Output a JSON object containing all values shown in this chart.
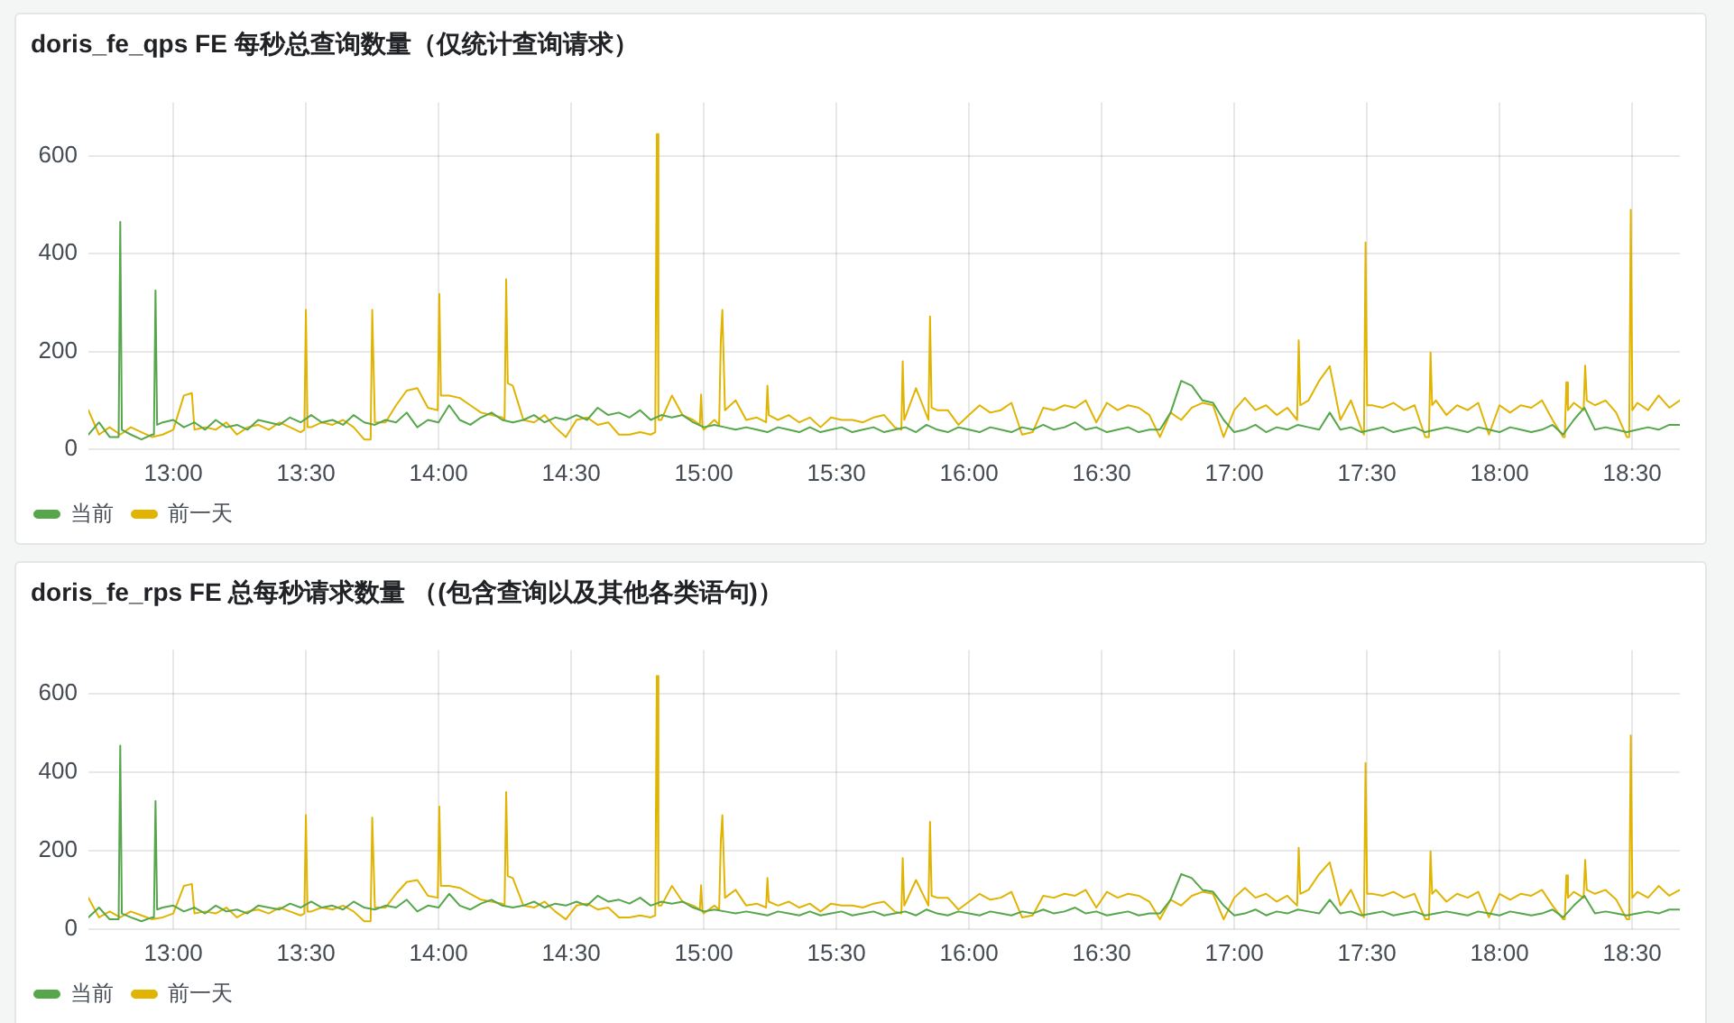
{
  "chart_data": [
    {
      "type": "line",
      "title": "doris_fe_qps FE 每秒总查询数量（仅统计查询请求）",
      "xlim": [
        12.68,
        18.68
      ],
      "xticks": [
        {
          "value": 13,
          "label": "13:00"
        },
        {
          "value": 13.5,
          "label": "13:30"
        },
        {
          "value": 14,
          "label": "14:00"
        },
        {
          "value": 14.5,
          "label": "14:30"
        },
        {
          "value": 15,
          "label": "15:00"
        },
        {
          "value": 15.5,
          "label": "15:30"
        },
        {
          "value": 16,
          "label": "16:00"
        },
        {
          "value": 16.5,
          "label": "16:30"
        },
        {
          "value": 17,
          "label": "17:00"
        },
        {
          "value": 17.5,
          "label": "17:30"
        },
        {
          "value": 18,
          "label": "18:00"
        },
        {
          "value": 18.5,
          "label": "18:30"
        }
      ],
      "ylim": [
        0,
        710
      ],
      "yticks": [
        0,
        200,
        400,
        600
      ],
      "grid": true,
      "legend": "bottom",
      "marker": "none",
      "series": [
        {
          "name": "当前",
          "color": "#56a64b",
          "x": [
            12.68,
            12.72,
            12.76,
            12.794,
            12.8,
            12.806,
            12.84,
            12.88,
            12.92,
            12.927,
            12.933,
            12.939,
            12.96,
            13,
            13.04,
            13.08,
            13.12,
            13.16,
            13.2,
            13.24,
            13.28,
            13.32,
            13.36,
            13.4,
            13.44,
            13.48,
            13.52,
            13.56,
            13.6,
            13.64,
            13.68,
            13.72,
            13.76,
            13.8,
            13.84,
            13.88,
            13.92,
            13.96,
            14,
            14.04,
            14.08,
            14.12,
            14.16,
            14.2,
            14.24,
            14.28,
            14.32,
            14.36,
            14.4,
            14.44,
            14.48,
            14.52,
            14.56,
            14.6,
            14.64,
            14.68,
            14.72,
            14.76,
            14.8,
            14.84,
            14.88,
            14.92,
            14.96,
            15,
            15.04,
            15.08,
            15.12,
            15.16,
            15.2,
            15.24,
            15.28,
            15.32,
            15.36,
            15.4,
            15.44,
            15.48,
            15.52,
            15.56,
            15.6,
            15.64,
            15.68,
            15.72,
            15.76,
            15.8,
            15.84,
            15.88,
            15.92,
            15.96,
            16,
            16.04,
            16.08,
            16.12,
            16.16,
            16.2,
            16.24,
            16.28,
            16.32,
            16.36,
            16.4,
            16.44,
            16.48,
            16.52,
            16.56,
            16.6,
            16.64,
            16.68,
            16.72,
            16.76,
            16.8,
            16.84,
            16.88,
            16.92,
            16.96,
            17,
            17.04,
            17.08,
            17.12,
            17.16,
            17.2,
            17.24,
            17.28,
            17.32,
            17.36,
            17.4,
            17.44,
            17.48,
            17.52,
            17.56,
            17.6,
            17.64,
            17.68,
            17.72,
            17.76,
            17.8,
            17.84,
            17.88,
            17.92,
            17.96,
            18,
            18.04,
            18.08,
            18.12,
            18.16,
            18.2,
            18.24,
            18.28,
            18.32,
            18.36,
            18.4,
            18.44,
            18.48,
            18.52,
            18.56,
            18.6,
            18.64,
            18.68
          ],
          "values": [
            30,
            55,
            25,
            25,
            465,
            40,
            30,
            20,
            30,
            30,
            325,
            50,
            55,
            60,
            45,
            55,
            40,
            60,
            45,
            50,
            40,
            60,
            55,
            50,
            65,
            55,
            70,
            55,
            60,
            50,
            70,
            55,
            50,
            60,
            55,
            75,
            45,
            60,
            55,
            90,
            60,
            50,
            65,
            75,
            60,
            55,
            60,
            70,
            55,
            65,
            60,
            70,
            60,
            85,
            70,
            75,
            65,
            80,
            60,
            70,
            65,
            70,
            55,
            45,
            50,
            45,
            40,
            45,
            40,
            35,
            45,
            40,
            35,
            45,
            35,
            40,
            45,
            35,
            40,
            45,
            35,
            40,
            45,
            35,
            50,
            40,
            35,
            45,
            40,
            35,
            45,
            40,
            35,
            45,
            40,
            50,
            40,
            45,
            55,
            40,
            45,
            35,
            40,
            45,
            35,
            40,
            40,
            75,
            140,
            130,
            100,
            95,
            60,
            35,
            40,
            50,
            35,
            45,
            40,
            50,
            45,
            40,
            75,
            40,
            45,
            35,
            40,
            45,
            35,
            40,
            45,
            35,
            40,
            45,
            40,
            35,
            45,
            40,
            35,
            45,
            40,
            35,
            40,
            50,
            30,
            60,
            85,
            40,
            45,
            40,
            35,
            40,
            45,
            40,
            50,
            50
          ]
        },
        {
          "name": "前一天",
          "color": "#e0b400",
          "x": [
            12.68,
            12.72,
            12.76,
            12.8,
            12.84,
            12.88,
            12.92,
            12.96,
            13,
            13.04,
            13.07,
            13.08,
            13.12,
            13.16,
            13.2,
            13.24,
            13.28,
            13.32,
            13.36,
            13.4,
            13.44,
            13.48,
            13.494,
            13.5,
            13.506,
            13.52,
            13.56,
            13.6,
            13.64,
            13.68,
            13.72,
            13.744,
            13.75,
            13.76,
            13.8,
            13.84,
            13.88,
            13.92,
            13.96,
            13.997,
            14.003,
            14.009,
            14.04,
            14.08,
            14.12,
            14.16,
            14.2,
            14.24,
            14.249,
            14.255,
            14.261,
            14.28,
            14.32,
            14.36,
            14.4,
            14.44,
            14.48,
            14.52,
            14.56,
            14.6,
            14.64,
            14.68,
            14.72,
            14.76,
            14.8,
            14.817,
            14.823,
            14.829,
            14.84,
            14.88,
            14.92,
            14.96,
            14.985,
            14.99,
            14.995,
            15,
            15.04,
            15.058,
            15.064,
            15.07,
            15.08,
            15.12,
            15.16,
            15.2,
            15.235,
            15.24,
            15.245,
            15.28,
            15.32,
            15.36,
            15.4,
            15.44,
            15.48,
            15.52,
            15.56,
            15.6,
            15.64,
            15.68,
            15.72,
            15.745,
            15.75,
            15.756,
            15.8,
            15.847,
            15.853,
            15.859,
            15.88,
            15.92,
            15.96,
            16,
            16.04,
            16.08,
            16.12,
            16.16,
            16.2,
            16.24,
            16.28,
            16.32,
            16.36,
            16.4,
            16.44,
            16.48,
            16.52,
            16.56,
            16.6,
            16.64,
            16.68,
            16.72,
            16.76,
            16.8,
            16.84,
            16.88,
            16.92,
            16.96,
            17,
            17.04,
            17.08,
            17.12,
            17.16,
            17.2,
            17.237,
            17.243,
            17.249,
            17.28,
            17.32,
            17.36,
            17.4,
            17.44,
            17.48,
            17.489,
            17.495,
            17.501,
            17.52,
            17.56,
            17.6,
            17.64,
            17.68,
            17.72,
            17.734,
            17.74,
            17.746,
            17.76,
            17.8,
            17.84,
            17.88,
            17.92,
            17.96,
            18,
            18.04,
            18.08,
            18.12,
            18.16,
            18.2,
            18.24,
            18.246,
            18.252,
            18.258,
            18.28,
            18.317,
            18.323,
            18.329,
            18.36,
            18.4,
            18.44,
            18.48,
            18.489,
            18.495,
            18.501,
            18.52,
            18.56,
            18.6,
            18.64,
            18.68
          ],
          "values": [
            80,
            30,
            45,
            30,
            45,
            35,
            25,
            30,
            40,
            110,
            115,
            40,
            45,
            40,
            55,
            30,
            45,
            50,
            40,
            55,
            45,
            35,
            40,
            285,
            45,
            45,
            55,
            50,
            60,
            45,
            20,
            20,
            285,
            55,
            55,
            90,
            120,
            125,
            85,
            80,
            318,
            110,
            110,
            105,
            90,
            75,
            70,
            65,
            60,
            348,
            135,
            130,
            60,
            55,
            70,
            45,
            25,
            60,
            65,
            50,
            55,
            30,
            30,
            35,
            30,
            35,
            645,
            60,
            60,
            110,
            70,
            60,
            50,
            112,
            45,
            40,
            60,
            50,
            220,
            285,
            80,
            100,
            60,
            65,
            55,
            130,
            70,
            60,
            70,
            55,
            65,
            45,
            65,
            60,
            60,
            55,
            65,
            70,
            45,
            40,
            180,
            60,
            125,
            60,
            272,
            85,
            80,
            80,
            50,
            70,
            90,
            75,
            80,
            95,
            30,
            35,
            85,
            80,
            90,
            85,
            100,
            55,
            95,
            80,
            90,
            85,
            70,
            25,
            75,
            60,
            85,
            95,
            90,
            25,
            80,
            105,
            80,
            90,
            70,
            85,
            60,
            223,
            90,
            100,
            140,
            170,
            60,
            100,
            40,
            30,
            423,
            90,
            90,
            85,
            95,
            80,
            90,
            25,
            25,
            198,
            90,
            100,
            70,
            90,
            80,
            95,
            30,
            90,
            75,
            90,
            85,
            100,
            60,
            25,
            25,
            137,
            80,
            95,
            80,
            171,
            100,
            90,
            100,
            75,
            25,
            25,
            490,
            80,
            95,
            80,
            110,
            85,
            100
          ]
        }
      ]
    },
    {
      "type": "line",
      "title": "doris_fe_rps FE 总每秒请求数量 （(包含查询以及其他各类语句)）",
      "xlim": [
        12.68,
        18.68
      ],
      "xticks": [
        {
          "value": 13,
          "label": "13:00"
        },
        {
          "value": 13.5,
          "label": "13:30"
        },
        {
          "value": 14,
          "label": "14:00"
        },
        {
          "value": 14.5,
          "label": "14:30"
        },
        {
          "value": 15,
          "label": "15:00"
        },
        {
          "value": 15.5,
          "label": "15:30"
        },
        {
          "value": 16,
          "label": "16:00"
        },
        {
          "value": 16.5,
          "label": "16:30"
        },
        {
          "value": 17,
          "label": "17:00"
        },
        {
          "value": 17.5,
          "label": "17:30"
        },
        {
          "value": 18,
          "label": "18:00"
        },
        {
          "value": 18.5,
          "label": "18:30"
        }
      ],
      "ylim": [
        0,
        710
      ],
      "yticks": [
        0,
        200,
        400,
        600
      ],
      "grid": true,
      "legend": "bottom",
      "marker": "none",
      "series": [
        {
          "name": "当前",
          "color": "#56a64b",
          "x": [
            12.68,
            12.72,
            12.76,
            12.794,
            12.8,
            12.806,
            12.84,
            12.88,
            12.92,
            12.927,
            12.933,
            12.939,
            12.96,
            13,
            13.04,
            13.08,
            13.12,
            13.16,
            13.2,
            13.24,
            13.28,
            13.32,
            13.36,
            13.4,
            13.44,
            13.48,
            13.52,
            13.56,
            13.6,
            13.64,
            13.68,
            13.72,
            13.76,
            13.8,
            13.84,
            13.88,
            13.92,
            13.96,
            14,
            14.04,
            14.08,
            14.12,
            14.16,
            14.2,
            14.24,
            14.28,
            14.32,
            14.36,
            14.4,
            14.44,
            14.48,
            14.52,
            14.56,
            14.6,
            14.64,
            14.68,
            14.72,
            14.76,
            14.8,
            14.84,
            14.88,
            14.92,
            14.96,
            15,
            15.04,
            15.08,
            15.12,
            15.16,
            15.2,
            15.24,
            15.28,
            15.32,
            15.36,
            15.4,
            15.44,
            15.48,
            15.52,
            15.56,
            15.6,
            15.64,
            15.68,
            15.72,
            15.76,
            15.8,
            15.84,
            15.88,
            15.92,
            15.96,
            16,
            16.04,
            16.08,
            16.12,
            16.16,
            16.2,
            16.24,
            16.28,
            16.32,
            16.36,
            16.4,
            16.44,
            16.48,
            16.52,
            16.56,
            16.6,
            16.64,
            16.68,
            16.72,
            16.76,
            16.8,
            16.84,
            16.88,
            16.92,
            16.96,
            17,
            17.04,
            17.08,
            17.12,
            17.16,
            17.2,
            17.24,
            17.28,
            17.32,
            17.36,
            17.4,
            17.44,
            17.48,
            17.52,
            17.56,
            17.6,
            17.64,
            17.68,
            17.72,
            17.76,
            17.8,
            17.84,
            17.88,
            17.92,
            17.96,
            18,
            18.04,
            18.08,
            18.12,
            18.16,
            18.2,
            18.24,
            18.28,
            18.32,
            18.36,
            18.4,
            18.44,
            18.48,
            18.52,
            18.56,
            18.6,
            18.64,
            18.68
          ],
          "values": [
            30,
            55,
            25,
            25,
            467,
            40,
            30,
            20,
            30,
            30,
            326,
            50,
            55,
            60,
            45,
            55,
            40,
            60,
            45,
            50,
            40,
            60,
            55,
            50,
            65,
            55,
            70,
            55,
            60,
            50,
            70,
            55,
            50,
            60,
            55,
            75,
            45,
            60,
            55,
            90,
            60,
            50,
            65,
            75,
            60,
            55,
            60,
            70,
            55,
            65,
            60,
            70,
            60,
            85,
            70,
            75,
            65,
            80,
            60,
            70,
            65,
            70,
            55,
            45,
            50,
            45,
            40,
            45,
            40,
            35,
            45,
            40,
            35,
            45,
            35,
            40,
            45,
            35,
            40,
            45,
            35,
            40,
            45,
            35,
            50,
            40,
            35,
            45,
            40,
            35,
            45,
            40,
            35,
            45,
            40,
            50,
            40,
            45,
            55,
            40,
            45,
            35,
            40,
            45,
            35,
            40,
            40,
            75,
            140,
            130,
            100,
            95,
            60,
            35,
            40,
            50,
            35,
            45,
            40,
            50,
            45,
            40,
            75,
            40,
            45,
            35,
            40,
            45,
            35,
            40,
            45,
            35,
            40,
            45,
            40,
            35,
            45,
            40,
            35,
            45,
            40,
            35,
            40,
            50,
            30,
            60,
            85,
            40,
            45,
            40,
            35,
            40,
            45,
            40,
            50,
            50
          ]
        },
        {
          "name": "前一天",
          "color": "#e0b400",
          "x": [
            12.68,
            12.72,
            12.76,
            12.8,
            12.84,
            12.88,
            12.92,
            12.96,
            13,
            13.04,
            13.07,
            13.08,
            13.12,
            13.16,
            13.2,
            13.24,
            13.28,
            13.32,
            13.36,
            13.4,
            13.44,
            13.48,
            13.494,
            13.5,
            13.506,
            13.52,
            13.56,
            13.6,
            13.64,
            13.68,
            13.72,
            13.744,
            13.75,
            13.76,
            13.8,
            13.84,
            13.88,
            13.92,
            13.96,
            13.997,
            14.003,
            14.009,
            14.04,
            14.08,
            14.12,
            14.16,
            14.2,
            14.24,
            14.249,
            14.255,
            14.261,
            14.28,
            14.32,
            14.36,
            14.4,
            14.44,
            14.48,
            14.52,
            14.56,
            14.6,
            14.64,
            14.68,
            14.72,
            14.76,
            14.8,
            14.817,
            14.823,
            14.829,
            14.84,
            14.88,
            14.92,
            14.96,
            14.985,
            14.99,
            14.995,
            15,
            15.04,
            15.058,
            15.064,
            15.07,
            15.08,
            15.12,
            15.16,
            15.2,
            15.235,
            15.24,
            15.245,
            15.28,
            15.32,
            15.36,
            15.4,
            15.44,
            15.48,
            15.52,
            15.56,
            15.6,
            15.64,
            15.68,
            15.72,
            15.745,
            15.75,
            15.756,
            15.8,
            15.847,
            15.853,
            15.859,
            15.88,
            15.92,
            15.96,
            16,
            16.04,
            16.08,
            16.12,
            16.16,
            16.2,
            16.24,
            16.28,
            16.32,
            16.36,
            16.4,
            16.44,
            16.48,
            16.52,
            16.56,
            16.6,
            16.64,
            16.68,
            16.72,
            16.76,
            16.8,
            16.84,
            16.88,
            16.92,
            16.96,
            17,
            17.04,
            17.08,
            17.12,
            17.16,
            17.2,
            17.237,
            17.243,
            17.249,
            17.28,
            17.32,
            17.36,
            17.4,
            17.44,
            17.48,
            17.489,
            17.495,
            17.501,
            17.52,
            17.56,
            17.6,
            17.64,
            17.68,
            17.72,
            17.734,
            17.74,
            17.746,
            17.76,
            17.8,
            17.84,
            17.88,
            17.92,
            17.96,
            18,
            18.04,
            18.08,
            18.12,
            18.16,
            18.2,
            18.24,
            18.246,
            18.252,
            18.258,
            18.28,
            18.317,
            18.323,
            18.329,
            18.36,
            18.4,
            18.44,
            18.48,
            18.489,
            18.495,
            18.501,
            18.52,
            18.56,
            18.6,
            18.64,
            18.68
          ],
          "values": [
            80,
            30,
            45,
            30,
            45,
            35,
            25,
            30,
            40,
            110,
            115,
            40,
            45,
            40,
            55,
            30,
            45,
            50,
            40,
            55,
            45,
            35,
            40,
            290,
            45,
            45,
            55,
            50,
            60,
            45,
            20,
            20,
            284,
            55,
            55,
            90,
            120,
            125,
            85,
            80,
            312,
            110,
            110,
            105,
            90,
            75,
            70,
            65,
            60,
            349,
            135,
            130,
            60,
            55,
            70,
            45,
            25,
            60,
            65,
            50,
            55,
            30,
            30,
            35,
            30,
            35,
            644,
            60,
            60,
            110,
            70,
            60,
            50,
            112,
            45,
            40,
            60,
            50,
            220,
            290,
            80,
            100,
            60,
            65,
            55,
            130,
            70,
            60,
            70,
            55,
            65,
            45,
            65,
            60,
            60,
            55,
            65,
            70,
            45,
            40,
            181,
            60,
            125,
            60,
            273,
            85,
            80,
            80,
            50,
            70,
            90,
            75,
            80,
            95,
            30,
            35,
            85,
            80,
            90,
            85,
            100,
            55,
            95,
            80,
            90,
            85,
            70,
            25,
            75,
            60,
            85,
            95,
            90,
            25,
            80,
            105,
            80,
            90,
            70,
            85,
            60,
            207,
            90,
            100,
            140,
            170,
            60,
            100,
            40,
            30,
            423,
            90,
            90,
            85,
            95,
            80,
            90,
            25,
            25,
            198,
            90,
            100,
            70,
            90,
            80,
            95,
            30,
            90,
            75,
            90,
            85,
            100,
            60,
            25,
            25,
            137,
            80,
            95,
            80,
            176,
            100,
            90,
            100,
            75,
            25,
            25,
            493,
            80,
            95,
            80,
            110,
            85,
            100
          ]
        }
      ]
    }
  ]
}
